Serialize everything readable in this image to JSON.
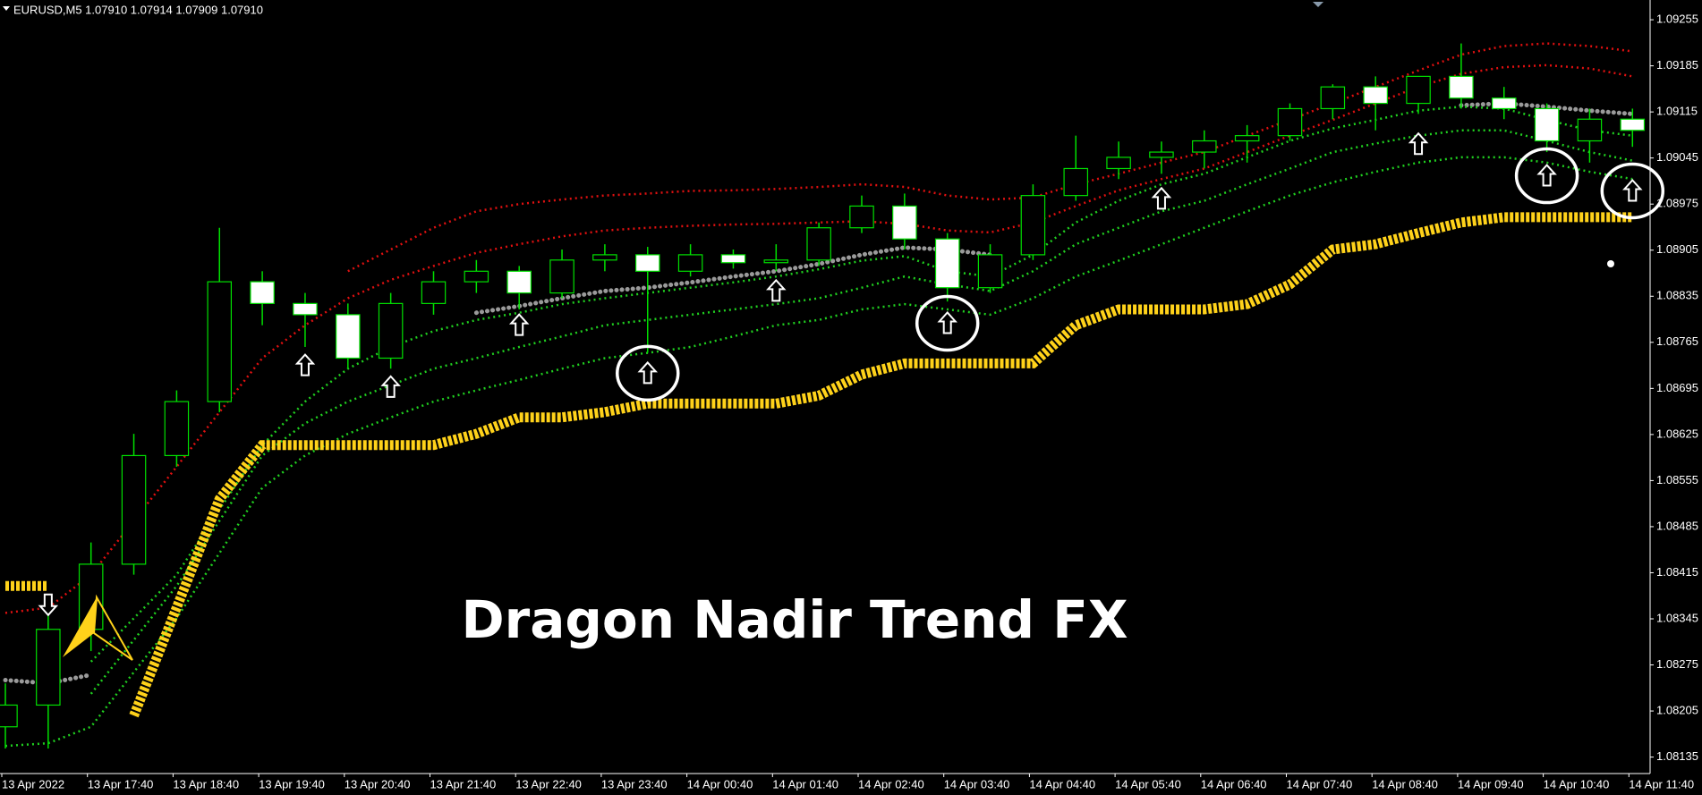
{
  "chart_data": {
    "type": "candlestick",
    "header": "EURUSD,M5  1.07910 1.07914 1.07909 1.07910",
    "title": "Dragon Nadir Trend FX",
    "categories": [
      "13 Apr 2022",
      null,
      "13 Apr 17:40",
      null,
      "13 Apr 18:40",
      null,
      "13 Apr 19:40",
      null,
      "13 Apr 20:40",
      null,
      "13 Apr 21:40",
      null,
      "13 Apr 22:40",
      null,
      "13 Apr 23:40",
      null,
      "14 Apr 00:40",
      null,
      "14 Apr 01:40",
      null,
      "14 Apr 02:40",
      null,
      "14 Apr 03:40",
      null,
      "14 Apr 04:40",
      null,
      "14 Apr 05:40",
      null,
      "14 Apr 06:40",
      null,
      "14 Apr 07:40",
      null,
      "14 Apr 08:40",
      null,
      "14 Apr 09:40",
      null,
      "14 Apr 10:40",
      null,
      "14 Apr 11:40"
    ],
    "open": [
      1.08181,
      1.08214,
      1.08329,
      1.08428,
      1.08593,
      1.08675,
      1.08857,
      1.08824,
      1.08807,
      1.08741,
      1.08824,
      1.08857,
      1.08873,
      1.0884,
      1.0889,
      1.08898,
      1.08873,
      1.08898,
      1.08886,
      1.0889,
      1.08939,
      1.08972,
      1.08922,
      1.08848,
      1.08898,
      1.08988,
      1.09029,
      1.09046,
      1.09054,
      1.09071,
      1.09079,
      1.0912,
      1.09153,
      1.09128,
      1.09169,
      1.09136,
      1.0912,
      1.09071,
      1.09104
    ],
    "high": [
      1.08247,
      1.08362,
      1.08461,
      1.08626,
      1.08692,
      1.08939,
      1.08873,
      1.0884,
      1.08824,
      1.0884,
      1.08873,
      1.0889,
      1.08881,
      1.08906,
      1.08914,
      1.0891,
      1.08914,
      1.08906,
      1.08914,
      1.08947,
      1.08988,
      1.08991,
      1.08931,
      1.08914,
      1.09005,
      1.09079,
      1.0907,
      1.0907,
      1.09087,
      1.09095,
      1.09128,
      1.09157,
      1.09169,
      1.09169,
      1.09219,
      1.09153,
      1.09128,
      1.0912,
      1.0912
    ],
    "low": [
      1.08148,
      1.08148,
      1.08296,
      1.08412,
      1.08576,
      1.08659,
      1.08791,
      1.08758,
      1.08725,
      1.08725,
      1.08807,
      1.0884,
      1.08815,
      1.08832,
      1.08873,
      1.08749,
      1.08865,
      1.08877,
      1.08873,
      1.08881,
      1.08931,
      1.08906,
      1.08827,
      1.0884,
      1.0889,
      1.0898,
      1.09013,
      1.09021,
      1.09029,
      1.09038,
      1.09071,
      1.09104,
      1.09087,
      1.09112,
      1.0912,
      1.09104,
      1.09054,
      1.09038,
      1.09062
    ],
    "close": [
      1.08214,
      1.08329,
      1.08428,
      1.08593,
      1.08675,
      1.08857,
      1.08824,
      1.08807,
      1.08741,
      1.08824,
      1.08857,
      1.08873,
      1.0884,
      1.0889,
      1.08898,
      1.08873,
      1.08898,
      1.08886,
      1.0889,
      1.08939,
      1.08972,
      1.08922,
      1.08848,
      1.08898,
      1.08988,
      1.09029,
      1.09046,
      1.09054,
      1.09071,
      1.09079,
      1.0912,
      1.09153,
      1.09128,
      1.09169,
      1.09136,
      1.0912,
      1.09071,
      1.09104,
      1.09087
    ],
    "candle_colors": {
      "up": "#000000",
      "down": "#ffffff",
      "outline": "#00e000"
    },
    "ylim": [
      1.0811,
      1.09285
    ],
    "yticks": [
      1.09255,
      1.09185,
      1.09115,
      1.09045,
      1.08975,
      1.08905,
      1.08835,
      1.08765,
      1.08695,
      1.08625,
      1.08555,
      1.08485,
      1.08415,
      1.08345,
      1.08275,
      1.08205,
      1.08135
    ],
    "series": [
      {
        "color": "#e01010",
        "style": "dotted",
        "values": [
          null,
          null,
          null,
          null,
          null,
          null,
          null,
          null,
          1.08873,
          1.08906,
          1.08939,
          1.08964,
          1.08975,
          1.08982,
          1.08988,
          1.08991,
          1.08995,
          1.08996,
          1.08998,
          1.09001,
          1.09005,
          1.09001,
          1.08988,
          1.08982,
          1.08985,
          1.09005,
          1.09021,
          1.09038,
          1.09054,
          1.09079,
          1.09103,
          1.09128,
          1.09153,
          1.09178,
          1.09202,
          1.09215,
          1.09219,
          1.09215,
          1.09207
        ]
      },
      {
        "color": "#e01010",
        "style": "dotted",
        "values": [
          1.08354,
          1.08362,
          1.08412,
          1.08494,
          1.08576,
          1.08659,
          1.08741,
          1.08791,
          1.08832,
          1.0886,
          1.08881,
          1.08901,
          1.08914,
          1.08926,
          1.08935,
          1.08939,
          1.08942,
          1.08944,
          1.08945,
          1.08947,
          1.08949,
          1.08945,
          1.08935,
          1.08932,
          1.08947,
          1.08972,
          1.08996,
          1.09013,
          1.09029,
          1.09054,
          1.09079,
          1.09103,
          1.09128,
          1.09153,
          1.09173,
          1.09183,
          1.09186,
          1.09181,
          1.09169
        ]
      },
      {
        "color": "#9a9a9a",
        "style": "beads",
        "values": [
          1.08252,
          1.08247,
          1.0826,
          null,
          null,
          null,
          null,
          null,
          null,
          null,
          null,
          1.0881,
          1.0882,
          1.08832,
          1.08843,
          1.08848,
          1.08856,
          1.08865,
          1.08873,
          1.08884,
          1.08898,
          1.08909,
          1.08906,
          1.08898,
          null,
          null,
          null,
          null,
          null,
          null,
          null,
          null,
          null,
          null,
          1.09125,
          1.09128,
          1.09123,
          1.09117,
          1.09112
        ]
      },
      {
        "color": "#20d020",
        "style": "dotted",
        "values": [
          null,
          null,
          1.0828,
          1.08346,
          1.08412,
          1.08511,
          1.08609,
          1.08675,
          1.08725,
          1.08758,
          1.08782,
          1.08799,
          1.0881,
          1.08823,
          1.08832,
          1.0884,
          1.08848,
          1.08856,
          1.08865,
          1.08876,
          1.08889,
          1.08896,
          1.08873,
          1.08865,
          1.08898,
          1.08947,
          1.0898,
          1.09005,
          1.09021,
          1.09046,
          1.09071,
          1.0909,
          1.09103,
          1.09117,
          1.09123,
          1.0912,
          1.09103,
          1.09087,
          1.09079
        ]
      },
      {
        "color": "#20d020",
        "style": "dotted",
        "values": [
          null,
          null,
          1.08231,
          1.08313,
          1.08395,
          1.08494,
          1.08593,
          1.08642,
          1.08675,
          1.087,
          1.08725,
          1.08741,
          1.08758,
          1.08774,
          1.08791,
          1.08799,
          1.08807,
          1.08815,
          1.08823,
          1.08832,
          1.08848,
          1.08865,
          1.08853,
          1.08843,
          1.08873,
          1.08914,
          1.08939,
          1.08964,
          1.0898,
          1.09005,
          1.09029,
          1.09054,
          1.09067,
          1.09079,
          1.09087,
          1.09087,
          1.09071,
          1.09054,
          1.09041
        ]
      },
      {
        "color": "#20d020",
        "style": "dotted",
        "values": [
          1.08152,
          1.08156,
          1.08181,
          1.08264,
          1.08346,
          1.08445,
          1.08544,
          1.08593,
          1.08626,
          1.08651,
          1.08675,
          1.08692,
          1.08708,
          1.08725,
          1.08741,
          1.08749,
          1.08758,
          1.08774,
          1.08791,
          1.08799,
          1.08815,
          1.08823,
          1.08815,
          1.08807,
          1.08832,
          1.08865,
          1.08889,
          1.08914,
          1.08939,
          1.08964,
          1.08988,
          1.09008,
          1.09024,
          1.09038,
          1.09046,
          1.09046,
          1.09038,
          1.09024,
          1.09013
        ]
      },
      {
        "color": "#ffd21a",
        "style": "zigzag",
        "values": [
          1.08395,
          1.08395,
          null,
          1.08198,
          1.08362,
          1.08527,
          1.08609,
          1.08609,
          1.08609,
          1.08609,
          1.08609,
          1.08626,
          1.08651,
          1.08651,
          1.08659,
          1.08672,
          1.08672,
          1.08672,
          1.08672,
          1.08684,
          1.08716,
          1.08733,
          1.08733,
          1.08733,
          1.08733,
          1.08791,
          1.08815,
          1.08815,
          1.08815,
          1.08823,
          1.08853,
          1.08906,
          1.08914,
          1.08931,
          1.08947,
          1.08955,
          1.08955,
          1.08955,
          1.08955
        ]
      }
    ],
    "signals": [
      {
        "marker": "up-arrow",
        "color": "#ffffff",
        "values": [
          null,
          null,
          null,
          null,
          null,
          null,
          null,
          1.0873,
          null,
          1.08697,
          null,
          null,
          1.08791,
          null,
          null,
          null,
          null,
          null,
          1.08843,
          null,
          null,
          null,
          null,
          null,
          null,
          null,
          null,
          1.08983,
          null,
          null,
          null,
          null,
          null,
          1.09066,
          null,
          null,
          null,
          null,
          null
        ]
      },
      {
        "marker": "up-arrow",
        "color": "#ffffff",
        "circle": true,
        "values": [
          null,
          null,
          null,
          null,
          null,
          null,
          null,
          null,
          null,
          null,
          null,
          null,
          null,
          null,
          null,
          1.08718,
          null,
          null,
          null,
          null,
          null,
          null,
          1.08794,
          null,
          null,
          null,
          null,
          null,
          null,
          null,
          null,
          null,
          null,
          null,
          null,
          null,
          1.09018,
          null,
          1.08995
        ]
      },
      {
        "marker": "down-arrow",
        "color": "#ffffff",
        "values": [
          null,
          1.08367,
          null,
          null,
          null,
          null,
          null,
          null,
          null,
          null,
          null,
          null,
          null,
          null,
          null,
          null,
          null,
          null,
          null,
          null,
          null,
          null,
          null,
          null,
          null,
          null,
          null,
          null,
          null,
          null,
          null,
          null,
          null,
          null,
          null,
          null,
          null,
          null,
          null
        ]
      }
    ]
  }
}
